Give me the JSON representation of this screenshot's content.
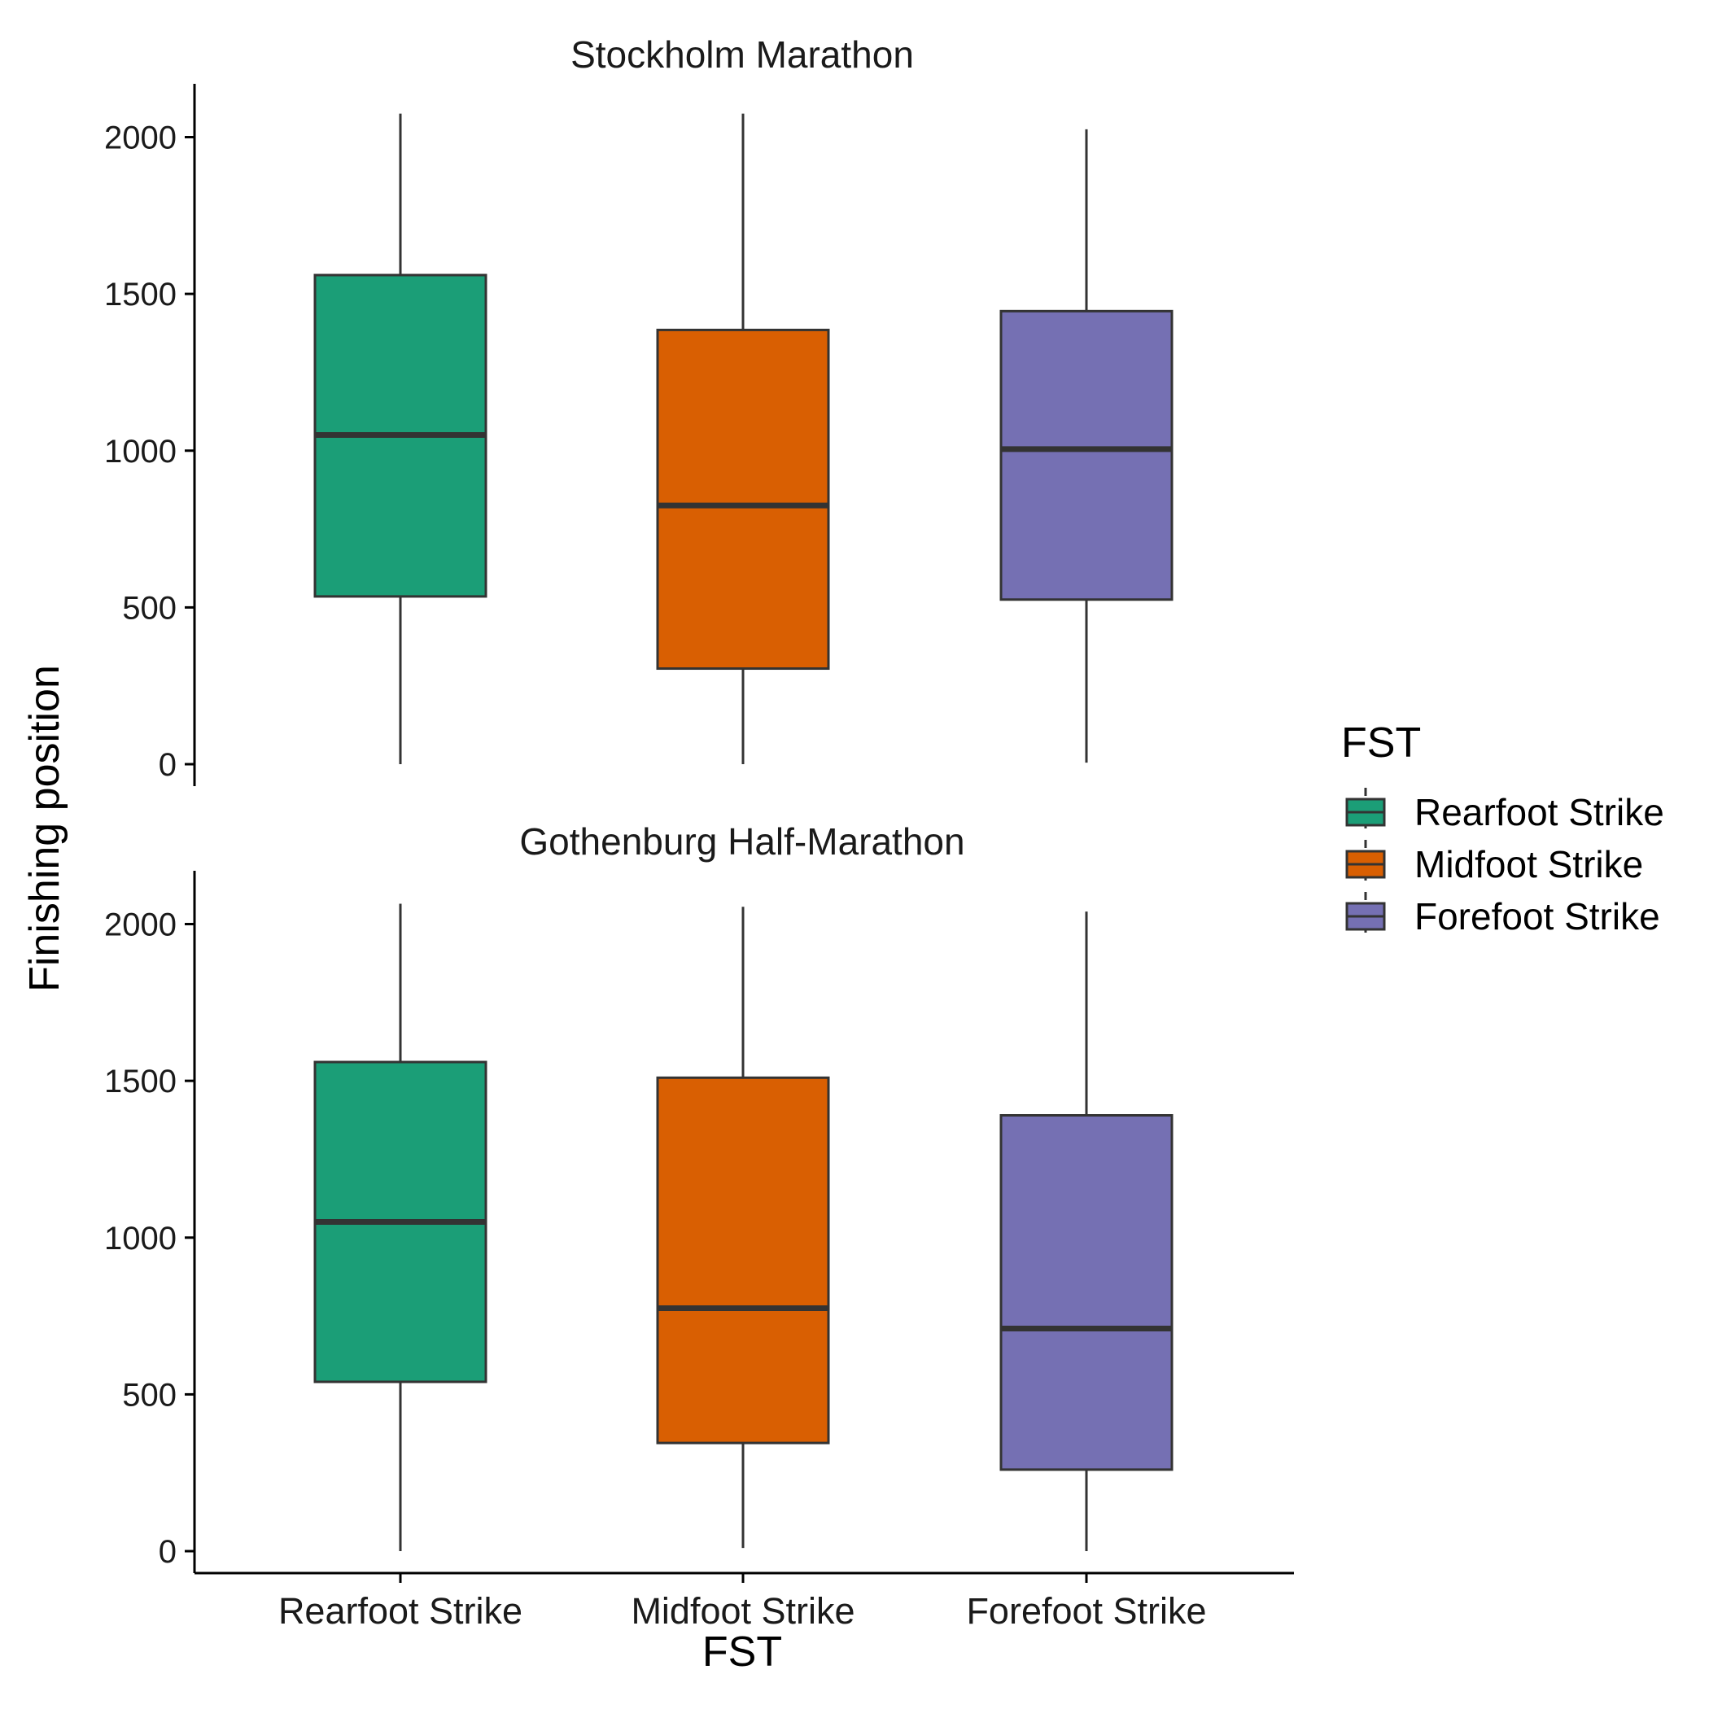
{
  "chart_data": {
    "type": "box",
    "categories": [
      "Rearfoot Strike",
      "Midfoot Strike",
      "Forefoot Strike"
    ],
    "xlabel": "FST",
    "ylabel": "Finishing position",
    "ylim": [
      -70,
      2170
    ],
    "yticks": [
      0,
      500,
      1000,
      1500,
      2000
    ],
    "grid": false,
    "legend": {
      "title": "FST",
      "position": "right",
      "entries": [
        "Rearfoot Strike",
        "Midfoot Strike",
        "Forefoot Strike"
      ]
    },
    "colors": [
      "#1B9E77",
      "#D95F02",
      "#7570B3"
    ],
    "panels": [
      {
        "title": "Stockholm Marathon",
        "series": [
          {
            "category": "Rearfoot Strike",
            "min": 0,
            "q1": 535,
            "median": 1050,
            "q3": 1560,
            "max": 2075
          },
          {
            "category": "Midfoot Strike",
            "min": 0,
            "q1": 305,
            "median": 825,
            "q3": 1385,
            "max": 2075
          },
          {
            "category": "Forefoot Strike",
            "min": 5,
            "q1": 525,
            "median": 1005,
            "q3": 1445,
            "max": 2025
          }
        ]
      },
      {
        "title": "Gothenburg Half-Marathon",
        "series": [
          {
            "category": "Rearfoot Strike",
            "min": 0,
            "q1": 540,
            "median": 1050,
            "q3": 1560,
            "max": 2065
          },
          {
            "category": "Midfoot Strike",
            "min": 10,
            "q1": 345,
            "median": 775,
            "q3": 1510,
            "max": 2055
          },
          {
            "category": "Forefoot Strike",
            "min": 0,
            "q1": 260,
            "median": 710,
            "q3": 1390,
            "max": 2040
          }
        ]
      }
    ]
  }
}
